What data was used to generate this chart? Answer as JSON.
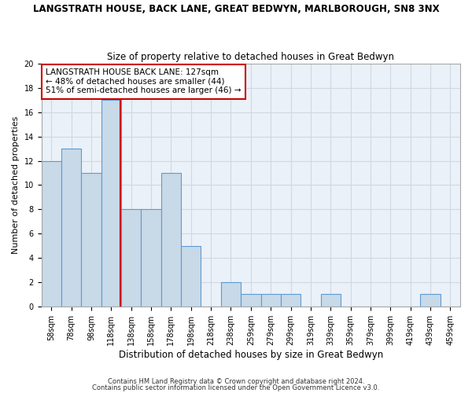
{
  "title": "LANGSTRATH HOUSE, BACK LANE, GREAT BEDWYN, MARLBOROUGH, SN8 3NX",
  "subtitle": "Size of property relative to detached houses in Great Bedwyn",
  "xlabel": "Distribution of detached houses by size in Great Bedwyn",
  "ylabel": "Number of detached properties",
  "footnote1": "Contains HM Land Registry data © Crown copyright and database right 2024.",
  "footnote2": "Contains public sector information licensed under the Open Government Licence v3.0.",
  "categories": [
    "58sqm",
    "78sqm",
    "98sqm",
    "118sqm",
    "138sqm",
    "158sqm",
    "178sqm",
    "198sqm",
    "218sqm",
    "238sqm",
    "259sqm",
    "279sqm",
    "299sqm",
    "319sqm",
    "339sqm",
    "359sqm",
    "379sqm",
    "399sqm",
    "419sqm",
    "439sqm",
    "459sqm"
  ],
  "values": [
    12,
    13,
    11,
    17,
    8,
    8,
    11,
    5,
    0,
    2,
    1,
    1,
    1,
    0,
    1,
    0,
    0,
    0,
    0,
    1,
    0
  ],
  "bar_color": "#c8d9e8",
  "bar_edgecolor": "#5b9bd5",
  "ylim": [
    0,
    20
  ],
  "yticks": [
    0,
    2,
    4,
    6,
    8,
    10,
    12,
    14,
    16,
    18,
    20
  ],
  "property_sqm": 127,
  "red_line_color": "#cc0000",
  "annotation_text": "LANGSTRATH HOUSE BACK LANE: 127sqm\n← 48% of detached houses are smaller (44)\n51% of semi-detached houses are larger (46) →",
  "annotation_box_color": "#ffffff",
  "annotation_box_edgecolor": "#cc0000",
  "grid_color": "#d0d8e4",
  "bg_color": "#eaf1f8",
  "title_fontsize": 8.5,
  "subtitle_fontsize": 8.5,
  "xlabel_fontsize": 8.5,
  "ylabel_fontsize": 8,
  "tick_fontsize": 7,
  "footnote_fontsize": 6,
  "annotation_fontsize": 7.5
}
